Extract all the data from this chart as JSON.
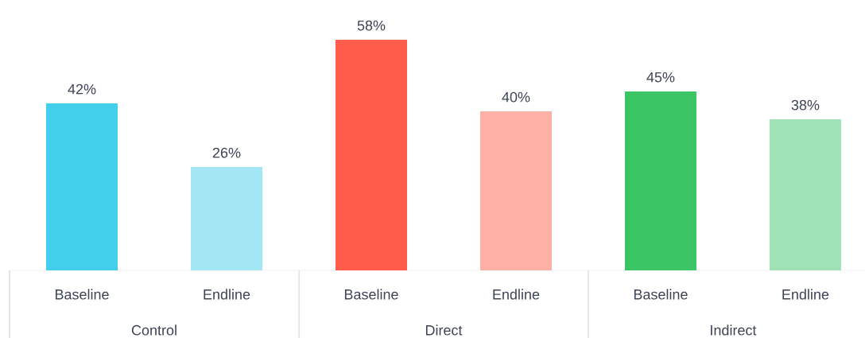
{
  "chart_data": {
    "type": "bar",
    "categories": [
      "Baseline",
      "Endline",
      "Baseline",
      "Endline",
      "Baseline",
      "Endline"
    ],
    "values": [
      42,
      26,
      58,
      40,
      45,
      38
    ],
    "colors": [
      "#41cfec",
      "#a3e7f5",
      "#ff5c4b",
      "#ffb0a6",
      "#3cc565",
      "#9fe2b5"
    ],
    "value_labels": [
      "42%",
      "26%",
      "58%",
      "40%",
      "45%",
      "38%"
    ],
    "annotations": [
      "Control",
      "Direct",
      "Indirect"
    ]
  }
}
